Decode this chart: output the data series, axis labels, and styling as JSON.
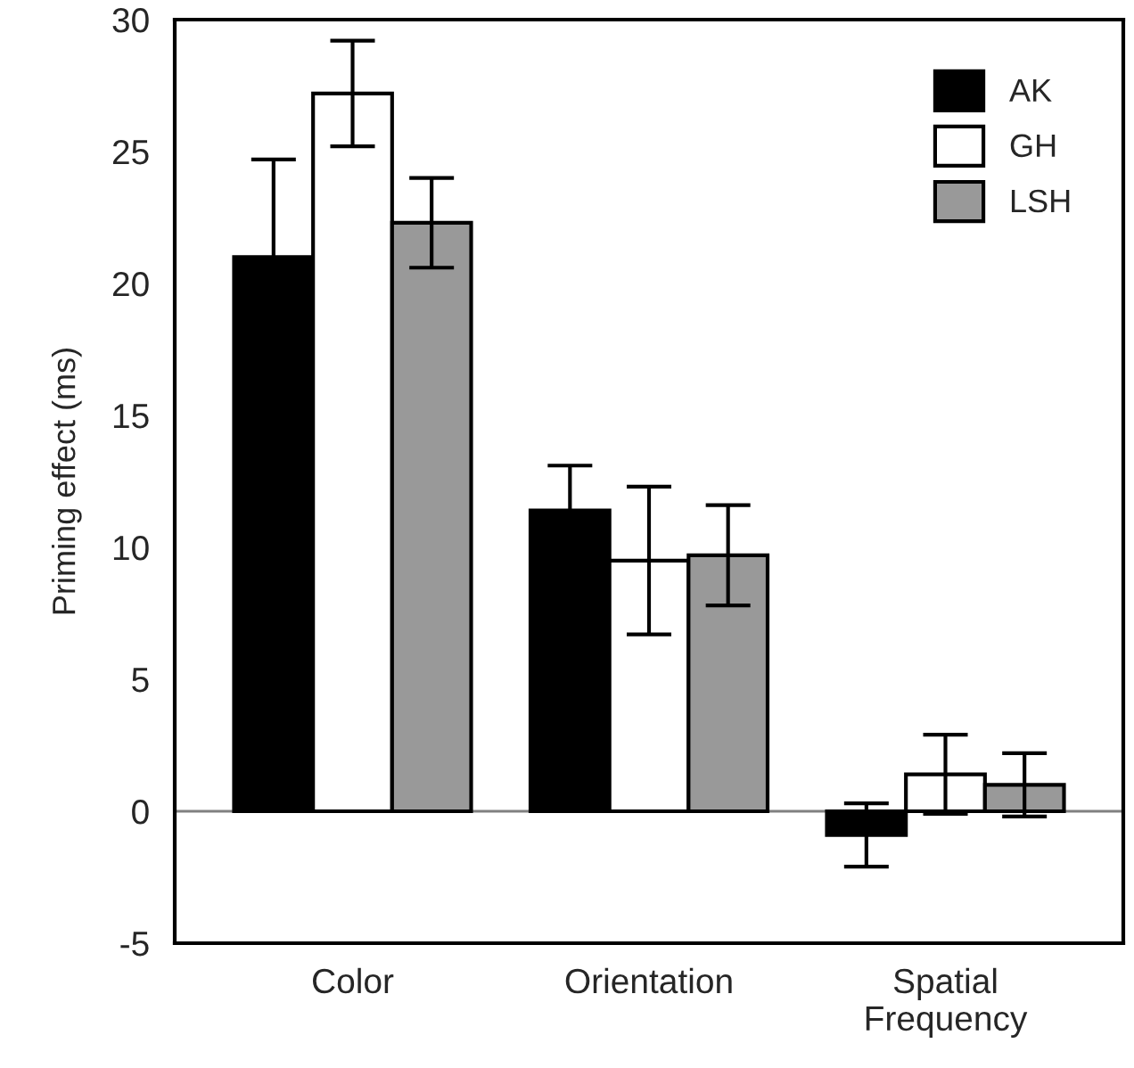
{
  "chart_data": {
    "type": "bar",
    "ylabel": "Priming effect (ms)",
    "categories": [
      "Color",
      "Orientation",
      "Spatial\nFrequency"
    ],
    "series": [
      {
        "name": "AK",
        "color": "#000000",
        "values": [
          21.0,
          11.4,
          -0.9
        ],
        "errors": [
          3.7,
          1.7,
          1.2
        ]
      },
      {
        "name": "GH",
        "color": "#ffffff",
        "values": [
          27.2,
          9.5,
          1.4
        ],
        "errors": [
          2.0,
          2.8,
          1.5
        ]
      },
      {
        "name": "LSH",
        "color": "#999999",
        "values": [
          22.3,
          9.7,
          1.0
        ],
        "errors": [
          1.7,
          1.9,
          1.2
        ]
      }
    ],
    "ylim": [
      -5,
      30
    ],
    "yticks": [
      -5,
      0,
      5,
      10,
      15,
      20,
      25,
      30
    ],
    "ref_lines": [
      {
        "axis": "y",
        "value": 0,
        "color": "#808080"
      }
    ],
    "legend": "top right",
    "grid": false
  }
}
